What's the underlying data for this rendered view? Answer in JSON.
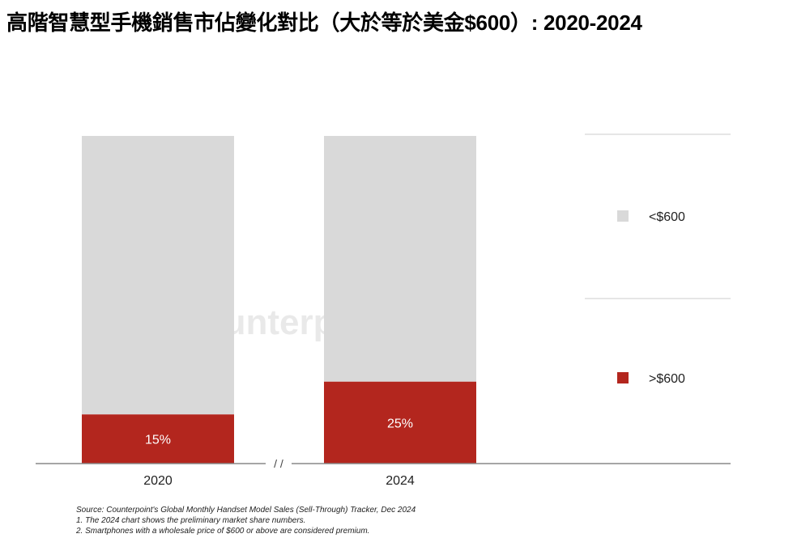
{
  "title": "高階智慧型手機銷售市佔變化對比（大於等於美金$600）: 2020-2024",
  "watermark": "Counterpoint",
  "axis_break": "/ /",
  "colors": {
    "below": "#d9d9d9",
    "above": "#b3261e",
    "axis": "#888888",
    "legend_rule": "#dddddd"
  },
  "chart_data": {
    "type": "bar",
    "stacked": true,
    "percent": true,
    "categories": [
      "2020",
      "2024"
    ],
    "series": [
      {
        "name": ">$600",
        "values": [
          15,
          25
        ],
        "labels": [
          "15%",
          "25%"
        ]
      },
      {
        "name": "<$600",
        "values": [
          85,
          75
        ]
      }
    ],
    "ylim": [
      0,
      100
    ],
    "legend_position": "right"
  },
  "notes": [
    "Source: Counterpoint's Global Monthly Handset Model Sales (Sell-Through) Tracker, Dec 2024",
    "1. The 2024 chart shows the preliminary market share numbers.",
    "2. Smartphones with a wholesale price of $600 or above are considered premium."
  ]
}
